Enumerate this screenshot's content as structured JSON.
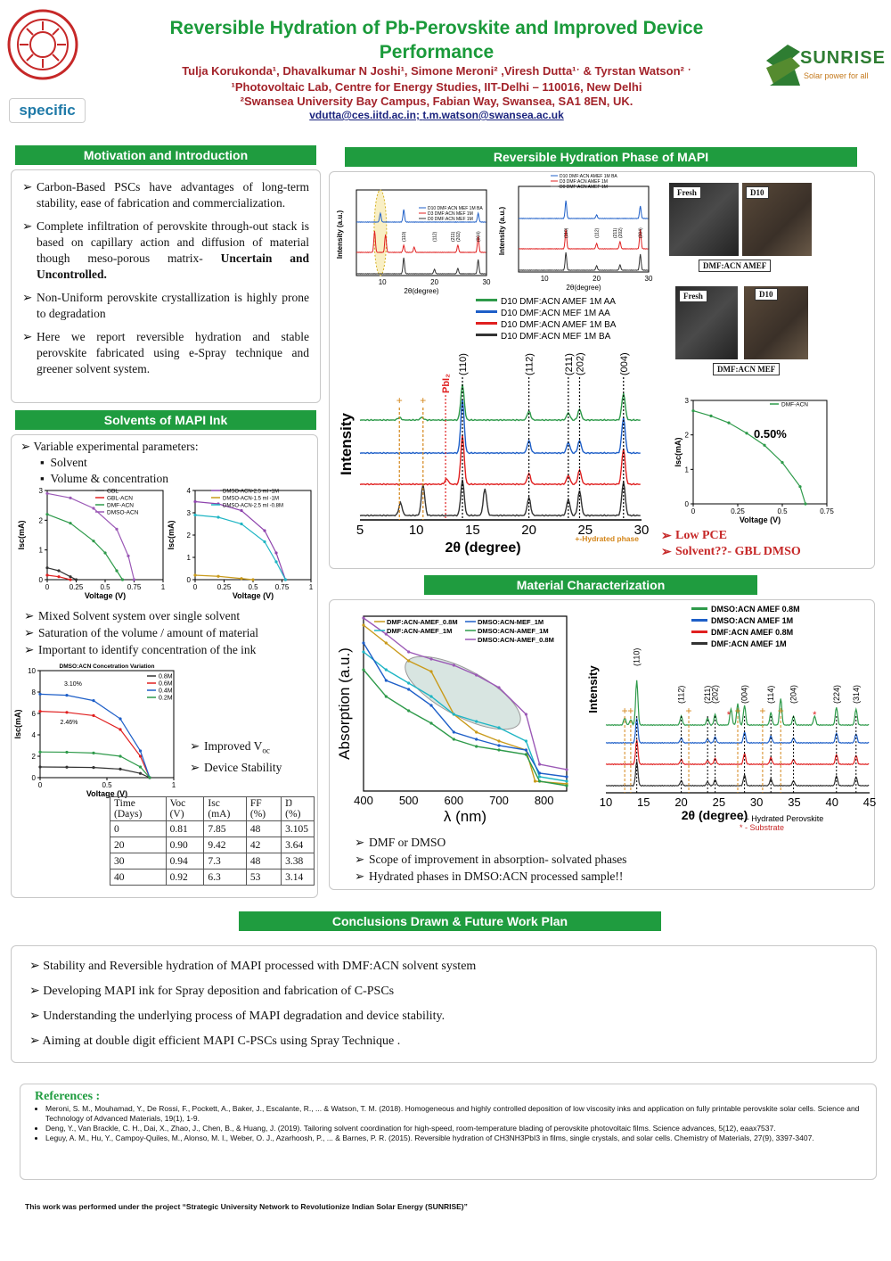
{
  "header": {
    "title_line1": "Reversible Hydration of Pb-Perovskite and Improved Device",
    "title_line2": "Performance",
    "authors": "Tulja Korukonda¹, Dhavalkumar N Joshi¹, Simone Meroni² ,Viresh Dutta¹ˑ & Tyrstan Watson² ˑ",
    "affil1": "¹Photovoltaic Lab, Centre for Energy Studies, IIT-Delhi – 110016, New Delhi",
    "affil2": "²Swansea University Bay Campus, Fabian Way, Swansea, SA1 8EN, UK.",
    "email1": "vdutta@ces.iitd.ac.in",
    "email_sep": ";",
    "email2": "t.m.watson@swansea.ac.uk",
    "logo_specific": "specific",
    "logo_sunrise": "SUNRISE",
    "logo_sunrise_tag": "Solar power for all"
  },
  "motivation": {
    "heading": "Motivation and Introduction",
    "b1": "Carbon-Based PSCs have advantages of long-term stability, ease of fabrication and commercialization.",
    "b2a": "Complete infiltration of perovskite through-out stack is based on capillary action and diffusion of material though meso-porous matrix- ",
    "b2b": "Uncertain and Uncontrolled.",
    "b3": "Non-Uniform perovskite crystallization is highly prone to degradation",
    "b4": "Here we report reversible hydration and stable perovskite fabricated using e-Spray technique and greener solvent system."
  },
  "solvents": {
    "heading": "Solvents of MAPI Ink",
    "b1": "Variable experimental parameters:",
    "s1": "Solvent",
    "s2": "Volume & concentration",
    "b2": "Mixed Solvent system over single solvent",
    "b3": "Saturation of the volume / amount of material",
    "b4": "Important to identify concentration of the ink",
    "r1": "Improved V",
    "r1sub": "oc",
    "r2": "Device Stability",
    "table_headers": [
      "Time (Days)",
      "Voc (V)",
      "Isc (mA)",
      "FF (%)",
      "Ŋ (%)"
    ],
    "table_rows": [
      [
        "0",
        "0.81",
        "7.85",
        "48",
        "3.105"
      ],
      [
        "20",
        "0.90",
        "9.42",
        "42",
        "3.64"
      ],
      [
        "30",
        "0.94",
        "7.3",
        "48",
        "3.38"
      ],
      [
        "40",
        "0.92",
        "6.3",
        "53",
        "3.14"
      ]
    ]
  },
  "hydration": {
    "heading": "Reversible Hydration Phase of MAPI",
    "legend_main": [
      "D10 DMF:ACN AMEF 1M AA",
      "D10 DMF:ACN MEF 1M AA",
      "D10 DMF:ACN AMEF 1M BA",
      "D10 DMF:ACN MEF 1M BA"
    ],
    "legend_colors": [
      "#2e9a4a",
      "#1e5fc8",
      "#e02020",
      "#333333"
    ],
    "b1": "Low PCE",
    "b2": "Solvent??- GBL DMSO",
    "photo1_fresh": "Fresh",
    "photo1_d10": "D10",
    "photo1_caption": "DMF:ACN AMEF",
    "photo2_fresh": "Fresh",
    "photo2_d10": "D10",
    "photo2_caption": "DMF:ACN MEF",
    "iv_legend": "DMF-ACN",
    "iv_pce": "0.50%",
    "hydrated_note": "+-Hydrated phase",
    "pbi2": "PbI₂",
    "ylabel": "Intensity",
    "xlabel": "2θ (degree)",
    "small_legend1": [
      "D10 DMF:ACN MEF 1M BA",
      "D3 DMF:ACN MEF 1M",
      "D0 DMF:ACN MEF 1M"
    ],
    "small_legend2": [
      "D10 DMF:ACN AMEF 1M BA",
      "D3 DMF:ACN AMEF 1M",
      "D0 DMF:ACN AMEF 1M"
    ]
  },
  "material": {
    "heading": "Material Characterization",
    "abs_legend": [
      "DMF:ACN-AMEF_0.8M",
      "DMF:ACN-AMEF_1M",
      "DMSO:ACN-MEF_1M",
      "DMSO:ACN-AMEF_1M",
      "DMSO:ACN-AMEF_0.8M"
    ],
    "abs_ylabel": "Absorption (a.u.)",
    "abs_xlabel": "λ (nm)",
    "xrd_legend": [
      "DMSO:ACN AMEF 0.8M",
      "DMSO:ACN AMEF 1M",
      "DMF:ACN AMEF 0.8M",
      "DMF:ACN AMEF 1M"
    ],
    "xrd_ylabel": "Intensity",
    "xrd_xlabel": "2θ (degree)",
    "note1": "+ - Hydrated Perovskite",
    "note2": "* - Substrate",
    "b1": "DMF or DMSO",
    "b2": "Scope of improvement in absorption- solvated phases",
    "b3": "Hydrated phases in DMSO:ACN processed sample!!"
  },
  "conclusions": {
    "heading": "Conclusions Drawn & Future Work Plan",
    "items": [
      "Stability and Reversible hydration of MAPI processed with DMF:ACN solvent system",
      "Developing MAPI ink for Spray deposition and fabrication of C-PSCs",
      "Understanding the underlying process of MAPI degradation and device stability.",
      "Aiming at double digit efficient MAPI C-PSCs using Spray Technique ."
    ]
  },
  "references": {
    "heading": "References :",
    "r1": "Meroni, S. M., Mouhamad, Y., De Rossi, F., Pockett, A., Baker, J., Escalante, R., ... & Watson, T. M. (2018). Homogeneous and highly controlled deposition of low viscosity inks and application on fully printable perovskite solar cells. Science and Technology of Advanced Materials, 19(1), 1-9.",
    "r2": "Deng, Y., Van Brackle, C. H., Dai, X., Zhao, J., Chen, B., & Huang, J. (2019). Tailoring solvent coordination for high-speed, room-temperature blading of perovskite photovoltaic films. Science advances, 5(12), eaax7537.",
    "r3": "Leguy, A. M., Hu, Y., Campoy-Quiles, M., Alonso, M. I., Weber, O. J., Azarhoosh, P., ... & Barnes, P. R. (2015). Reversible hydration of CH3NH3PbI3 in films, single crystals, and solar cells. Chemistry of Materials, 27(9), 3397-3407."
  },
  "footer": "This work was performed under the project “Strategic University Network to Revolutionize Indian Solar Energy (SUNRISE)”",
  "chart_data": [
    {
      "type": "line",
      "xlabel": "Voltage (V)",
      "ylabel": "Isc(mA)",
      "xlim": [
        0,
        1
      ],
      "ylim": [
        0,
        3
      ],
      "series": [
        {
          "name": "GBL",
          "x": [
            0,
            0.1,
            0.2,
            0.25
          ],
          "y": [
            0.4,
            0.3,
            0.1,
            0
          ]
        },
        {
          "name": "GBL-ACN",
          "x": [
            0,
            0.1,
            0.2
          ],
          "y": [
            0.15,
            0.1,
            0
          ]
        },
        {
          "name": "DMF-ACN",
          "x": [
            0,
            0.2,
            0.4,
            0.5,
            0.6,
            0.65
          ],
          "y": [
            2.2,
            1.9,
            1.3,
            0.9,
            0.3,
            0
          ]
        },
        {
          "name": "DMSO-ACN",
          "x": [
            0,
            0.2,
            0.4,
            0.6,
            0.7,
            0.75
          ],
          "y": [
            2.9,
            2.75,
            2.4,
            1.7,
            0.8,
            0
          ]
        }
      ]
    },
    {
      "type": "line",
      "xlabel": "Voltage (V)",
      "ylabel": "Isc(mA)",
      "xlim": [
        0,
        1
      ],
      "ylim": [
        0,
        4
      ],
      "series": [
        {
          "name": "DMSO-ACN-2.5 ml -1M",
          "x": [
            0,
            0.2,
            0.4,
            0.6,
            0.7,
            0.78
          ],
          "y": [
            3.5,
            3.4,
            3.1,
            2.2,
            1.2,
            0
          ]
        },
        {
          "name": "DMSO-ACN-1.5 ml -1M",
          "x": [
            0,
            0.2,
            0.4,
            0.5
          ],
          "y": [
            0.2,
            0.15,
            0.05,
            0
          ]
        },
        {
          "name": "DMSO-ACN-2.5 ml -0.8M",
          "x": [
            0,
            0.2,
            0.4,
            0.6,
            0.7,
            0.78
          ],
          "y": [
            2.9,
            2.8,
            2.5,
            1.7,
            0.8,
            0
          ]
        }
      ]
    },
    {
      "type": "line",
      "title": "DMSO:ACN Concetration Variation",
      "xlabel": "Voltage (V)",
      "ylabel": "Isc(mA)",
      "xlim": [
        0,
        1
      ],
      "ylim": [
        0,
        10
      ],
      "annotations": [
        "3.10%",
        "2.46%"
      ],
      "series": [
        {
          "name": "0.8M",
          "x": [
            0,
            0.2,
            0.4,
            0.6,
            0.75,
            0.82
          ],
          "y": [
            1,
            0.98,
            0.95,
            0.8,
            0.4,
            0
          ]
        },
        {
          "name": "0.6M",
          "x": [
            0,
            0.2,
            0.4,
            0.6,
            0.75,
            0.82
          ],
          "y": [
            6.2,
            6.1,
            5.8,
            4.5,
            2.0,
            0
          ]
        },
        {
          "name": "0.4M",
          "x": [
            0,
            0.2,
            0.4,
            0.6,
            0.75,
            0.82
          ],
          "y": [
            7.8,
            7.7,
            7.2,
            5.5,
            2.5,
            0
          ]
        },
        {
          "name": "0.2M",
          "x": [
            0,
            0.2,
            0.4,
            0.6,
            0.75,
            0.82
          ],
          "y": [
            2.4,
            2.38,
            2.3,
            2.0,
            1.0,
            0
          ]
        }
      ]
    },
    {
      "type": "line",
      "xlabel": "Voltage (V)",
      "ylabel": "Isc(mA)",
      "xlim": [
        0,
        0.75
      ],
      "ylim": [
        0,
        3
      ],
      "series": [
        {
          "name": "DMF-ACN",
          "x": [
            0,
            0.1,
            0.2,
            0.3,
            0.4,
            0.5,
            0.6,
            0.63
          ],
          "y": [
            2.7,
            2.55,
            2.35,
            2.05,
            1.7,
            1.2,
            0.5,
            0
          ]
        }
      ]
    }
  ]
}
